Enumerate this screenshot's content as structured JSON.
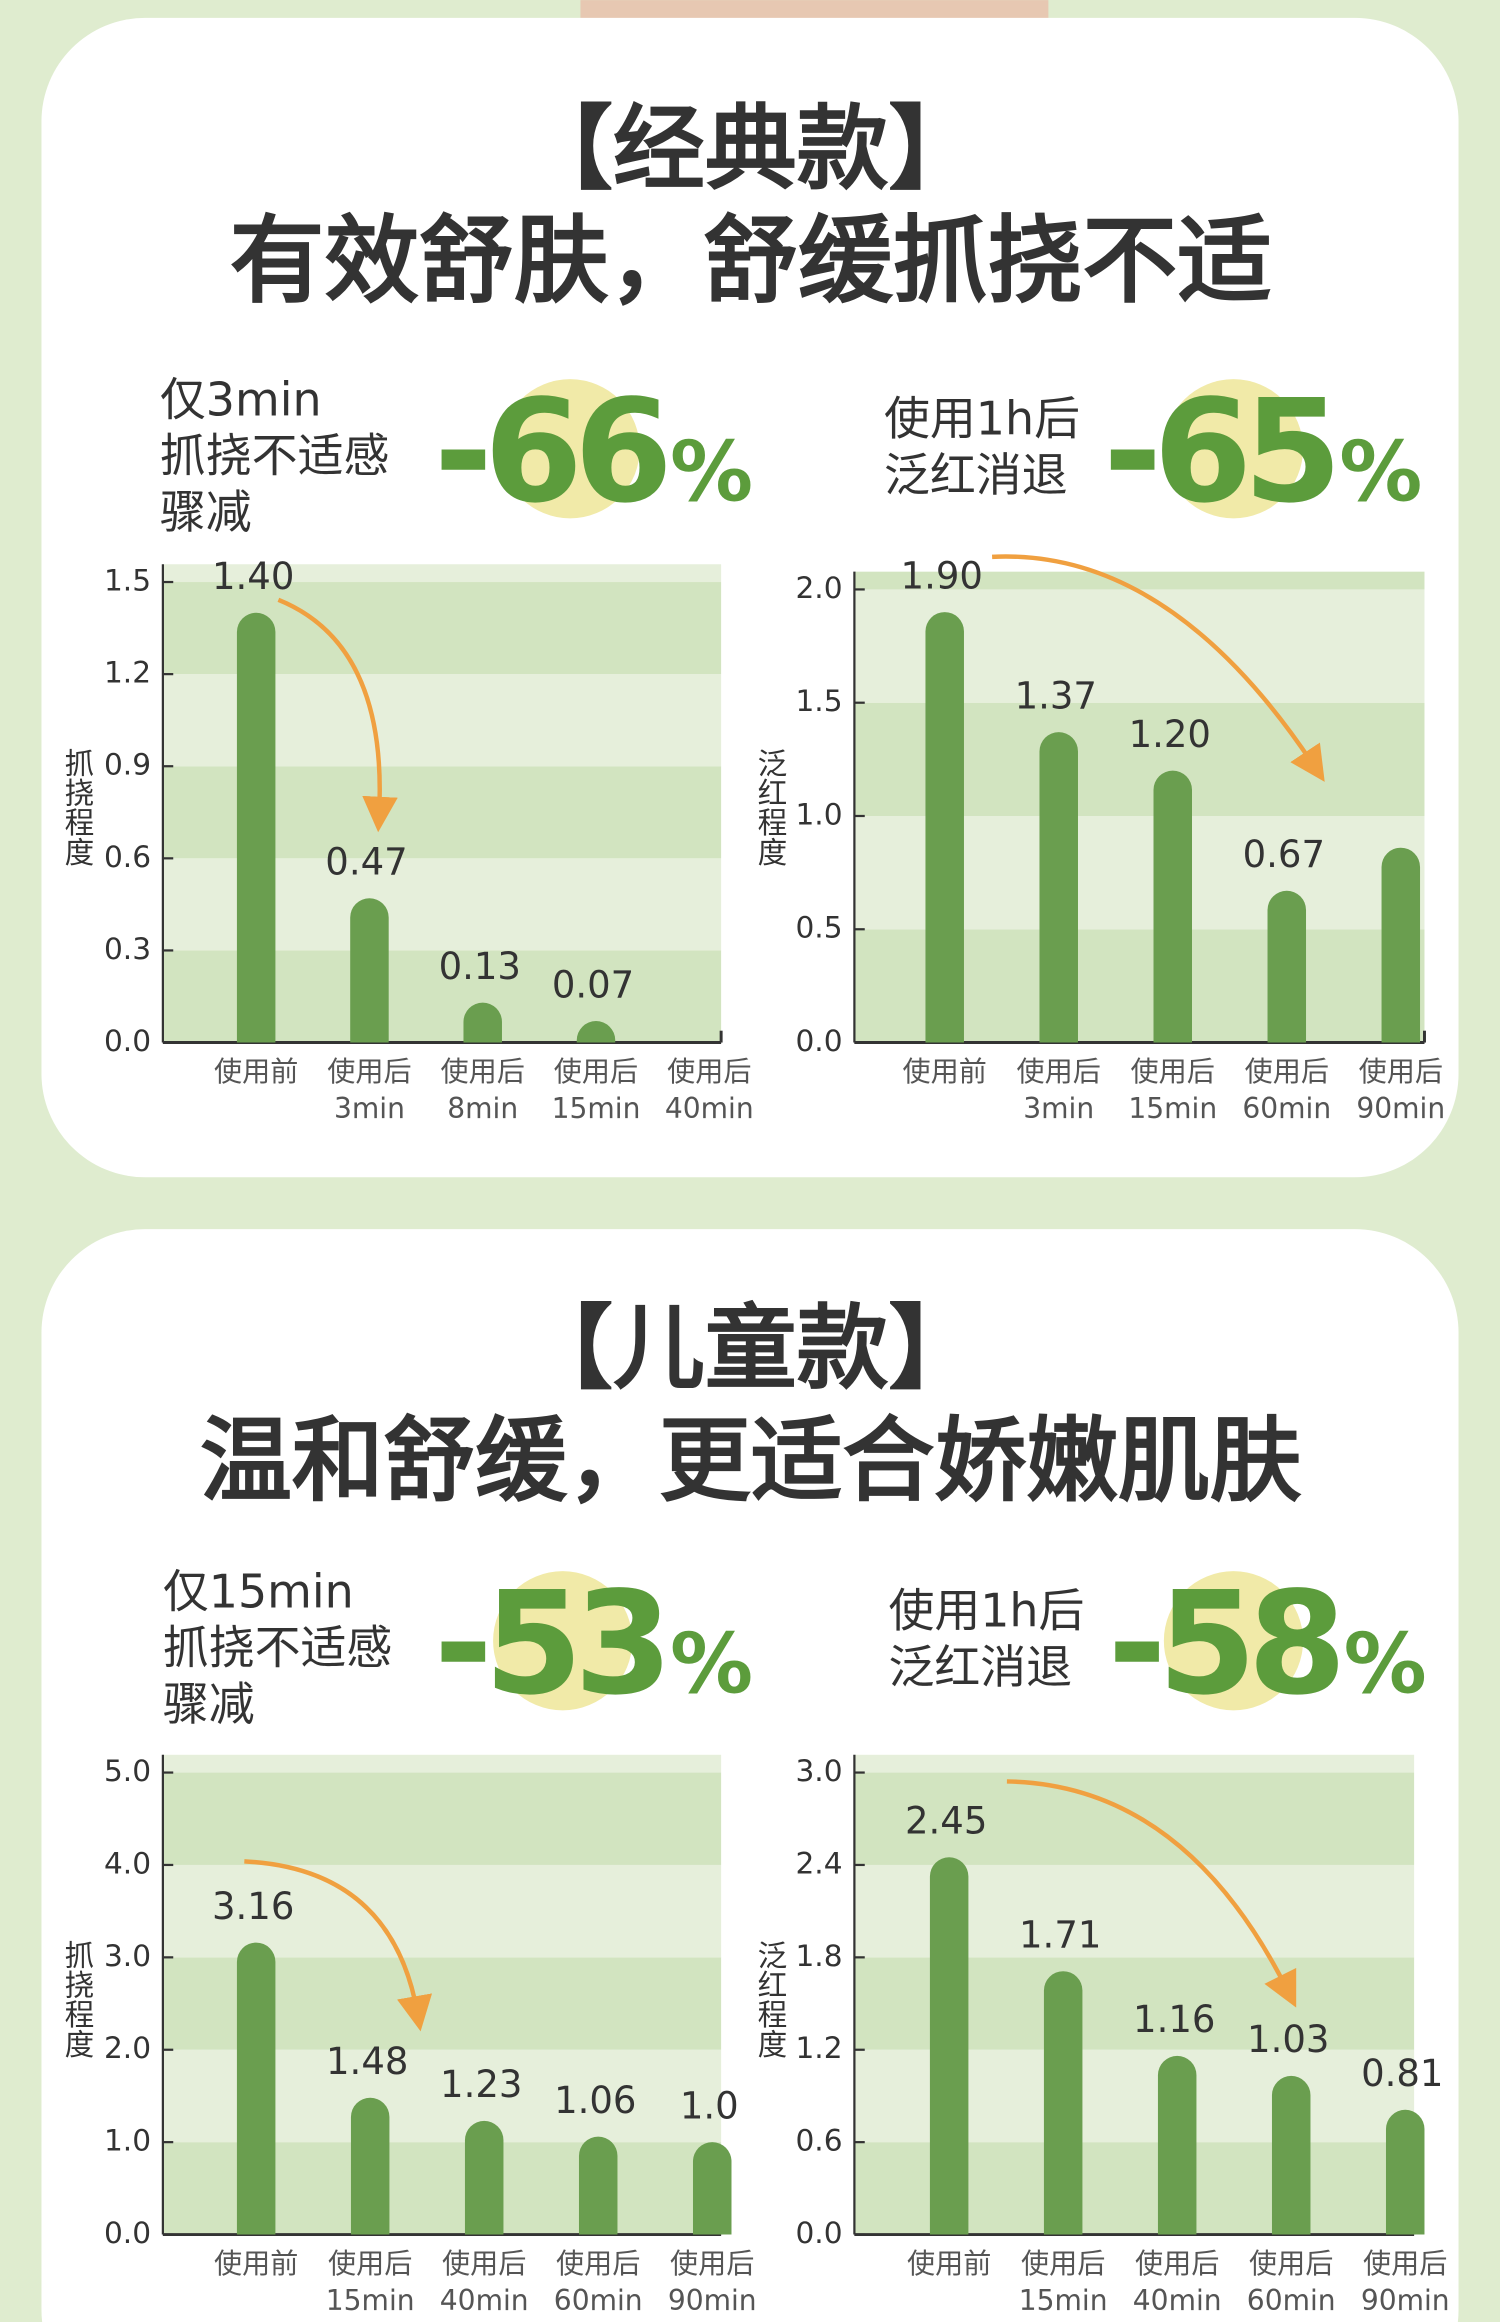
{
  "sections": [
    {
      "title": "【经典款】",
      "headline": "有效舒肤，舒缓抓挠不适"
    },
    {
      "title": "【儿童款】",
      "headline": "温和舒缓，更适合娇嫩肌肤"
    }
  ],
  "chart_data": [
    {
      "type": "bar",
      "callout": {
        "lines": [
          "仅3min",
          "抓挠不适感",
          "骤减"
        ],
        "figure": "-66",
        "unit": "%"
      },
      "y_label": "抓挠程度",
      "categories": [
        [
          "使用前"
        ],
        [
          "使用后",
          "3min"
        ],
        [
          "使用后",
          "8min"
        ],
        [
          "使用后",
          "15min"
        ],
        [
          "使用后",
          "40min"
        ]
      ],
      "values": [
        1.4,
        0.47,
        0.13,
        0.07,
        null
      ],
      "value_labels": [
        "1.40",
        "0.47",
        "0.13",
        "0.07",
        null
      ],
      "color": "#6a9e4f",
      "ylim": [
        0,
        1.5
      ],
      "yticks": [
        {
          "value": 0,
          "label": "0.0"
        },
        0.3,
        0.6,
        0.9,
        1.2,
        1.5
      ]
    },
    {
      "type": "bar",
      "callout": {
        "lines": [
          "使用1h后",
          "泛红消退"
        ],
        "figure": "-65",
        "unit": "%"
      },
      "y_label": "泛红程度",
      "categories": [
        [
          "使用前"
        ],
        [
          "使用后",
          "3min"
        ],
        [
          "使用后",
          "15min"
        ],
        [
          "使用后",
          "60min"
        ],
        [
          "使用后",
          "90min"
        ]
      ],
      "values": [
        1.9,
        1.37,
        1.2,
        0.67,
        0.86
      ],
      "value_labels": [
        "1.90",
        "1.37",
        "1.20",
        "0.67",
        null
      ],
      "color": "#6a9e4f",
      "ylim": [
        0,
        2
      ],
      "yticks": [
        {
          "value": 0,
          "label": "0.0"
        },
        0.5,
        {
          "value": 1,
          "label": "1.0"
        },
        1.5,
        {
          "value": 2,
          "label": "2.0"
        }
      ]
    },
    {
      "type": "bar",
      "callout": {
        "lines": [
          "仅15min",
          "抓挠不适感",
          "骤减"
        ],
        "figure": "-53",
        "unit": "%"
      },
      "y_label": "抓挠程度",
      "categories": [
        [
          "使用前"
        ],
        [
          "使用后",
          "15min"
        ],
        [
          "使用后",
          "40min"
        ],
        [
          "使用后",
          "60min"
        ],
        [
          "使用后",
          "90min"
        ]
      ],
      "values": [
        3.16,
        1.48,
        1.23,
        1.06,
        1
      ],
      "value_labels": [
        "3.16",
        "1.48",
        "1.23",
        "1.06",
        "1.0"
      ],
      "color": "#6a9e4f",
      "ylim": [
        0,
        5
      ],
      "yticks": [
        {
          "value": 0,
          "label": "0.0"
        },
        {
          "value": 1,
          "label": "1.0"
        },
        {
          "value": 2,
          "label": "2.0"
        },
        {
          "value": 3,
          "label": "3.0"
        },
        {
          "value": 4,
          "label": "4.0"
        },
        {
          "value": 5,
          "label": "5.0"
        }
      ]
    },
    {
      "type": "bar",
      "callout": {
        "lines": [
          "使用1h后",
          "泛红消退"
        ],
        "figure": "-58",
        "unit": "%"
      },
      "y_label": "泛红程度",
      "categories": [
        [
          "使用前"
        ],
        [
          "使用后",
          "15min"
        ],
        [
          "使用后",
          "40min"
        ],
        [
          "使用后",
          "60min"
        ],
        [
          "使用后",
          "90min"
        ]
      ],
      "values": [
        2.45,
        1.71,
        1.16,
        1.03,
        0.81
      ],
      "color": "#6a9e4f",
      "ylim": [
        0,
        3
      ],
      "yticks": [
        {
          "value": 0,
          "label": "0.0"
        },
        0.6,
        1.2,
        1.8,
        2.4,
        {
          "value": 3,
          "label": "3.0"
        }
      ]
    }
  ]
}
